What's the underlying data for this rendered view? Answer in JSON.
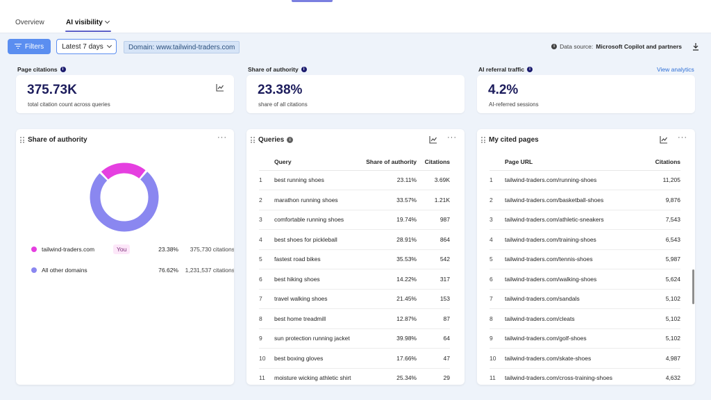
{
  "tabs": [
    {
      "label": "Overview",
      "active": false
    },
    {
      "label": "AI visibility",
      "active": true
    }
  ],
  "toolbar": {
    "filters_label": "Filters",
    "date_label": "Latest 7 days",
    "domain_chip": "Domain: www.tailwind-traders.com",
    "datasource_prefix": "Data source:",
    "datasource_value": "Microsoft Copilot and partners"
  },
  "kpis": [
    {
      "label": "Page citations",
      "value": "375.73K",
      "sub": "total citation count across queries"
    },
    {
      "label": "Share of authority",
      "value": "23.38%",
      "sub": "share of all citations"
    },
    {
      "label": "AI referral traffic",
      "value": "4.2%",
      "sub": "AI-referred sessions"
    }
  ],
  "view_analytics": "View analytics",
  "share_panel": {
    "title": "Share of authority",
    "legend": [
      {
        "name": "tailwind-traders.com",
        "badge": "You",
        "pct": "23.38%",
        "citations": "375,730 citations",
        "color": "#e53fe0"
      },
      {
        "name": "All other domains",
        "badge": "",
        "pct": "76.62%",
        "citations": "1,231,537 citations",
        "color": "#8a87f0"
      }
    ]
  },
  "queries_panel": {
    "title": "Queries",
    "columns": [
      "Query",
      "Share of authority",
      "Citations"
    ],
    "rows": [
      {
        "n": "1",
        "query": "best running shoes",
        "share": "23.11%",
        "citations": "3.69K"
      },
      {
        "n": "2",
        "query": "marathon running shoes",
        "share": "33.57%",
        "citations": "1.21K"
      },
      {
        "n": "3",
        "query": "comfortable running shoes",
        "share": "19.74%",
        "citations": "987"
      },
      {
        "n": "4",
        "query": "best shoes for pickleball",
        "share": "28.91%",
        "citations": "864"
      },
      {
        "n": "5",
        "query": "fastest road bikes",
        "share": "35.53%",
        "citations": "542"
      },
      {
        "n": "6",
        "query": "best hiking shoes",
        "share": "14.22%",
        "citations": "317"
      },
      {
        "n": "7",
        "query": "travel walking shoes",
        "share": "21.45%",
        "citations": "153"
      },
      {
        "n": "8",
        "query": "best home treadmill",
        "share": "12.87%",
        "citations": "87"
      },
      {
        "n": "9",
        "query": "sun protection running jacket",
        "share": "39.98%",
        "citations": "64"
      },
      {
        "n": "10",
        "query": "best boxing gloves",
        "share": "17.66%",
        "citations": "47"
      },
      {
        "n": "11",
        "query": "moisture wicking athletic shirt",
        "share": "25.34%",
        "citations": "29"
      }
    ]
  },
  "pages_panel": {
    "title": "My cited pages",
    "columns": [
      "Page URL",
      "Citations"
    ],
    "rows": [
      {
        "n": "1",
        "url": "tailwind-traders.com/running-shoes",
        "citations": "11,205"
      },
      {
        "n": "2",
        "url": "tailwind-traders.com/basketball-shoes",
        "citations": "9,876"
      },
      {
        "n": "3",
        "url": "tailwind-traders.com/athletic-sneakers",
        "citations": "7,543"
      },
      {
        "n": "4",
        "url": "tailwind-traders.com/training-shoes",
        "citations": "6,543"
      },
      {
        "n": "5",
        "url": "tailwind-traders.com/tennis-shoes",
        "citations": "5,987"
      },
      {
        "n": "6",
        "url": "tailwind-traders.com/walking-shoes",
        "citations": "5,624"
      },
      {
        "n": "7",
        "url": "tailwind-traders.com/sandals",
        "citations": "5,102"
      },
      {
        "n": "8",
        "url": "tailwind-traders.com/cleats",
        "citations": "5,102"
      },
      {
        "n": "9",
        "url": "tailwind-traders.com/golf-shoes",
        "citations": "5,102"
      },
      {
        "n": "10",
        "url": "tailwind-traders.com/skate-shoes",
        "citations": "4,987"
      },
      {
        "n": "11",
        "url": "tailwind-traders.com/cross-training-shoes",
        "citations": "4,632"
      }
    ]
  },
  "colors": {
    "accent": "#5b8ef0",
    "you": "#e53fe0",
    "others": "#8a87f0",
    "kpi_value": "#1c1c5c"
  }
}
